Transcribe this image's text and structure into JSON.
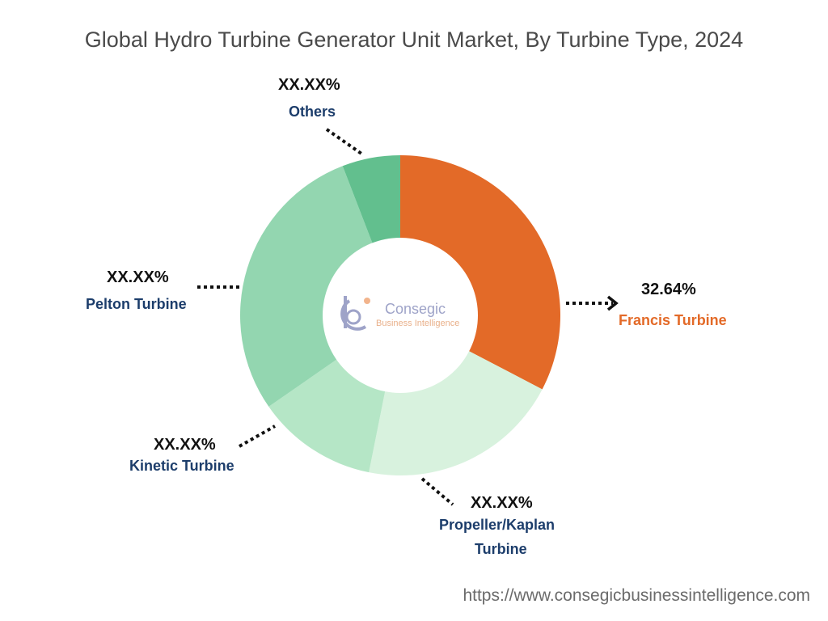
{
  "title": "Global Hydro Turbine Generator Unit Market, By Turbine Type, 2024",
  "source_url": "https://www.consegicbusinessintelligence.com",
  "logo": {
    "name": "Consegic",
    "tagline": "Business Intelligence"
  },
  "colors": {
    "francis": "#e36a28",
    "propeller": "#d8f2de",
    "kinetic": "#b5e6c6",
    "pelton": "#93d6b0",
    "others": "#62bf8e"
  },
  "chart_data": {
    "type": "pie",
    "donut": true,
    "title": "Global Hydro Turbine Generator Unit Market, By Turbine Type, 2024",
    "series": [
      {
        "name": "Francis Turbine",
        "value_label": "32.64%",
        "value": 32.64
      },
      {
        "name": "Propeller/Kaplan Turbine",
        "value_label": "XX.XX%",
        "value": 20.5
      },
      {
        "name": "Kinetic Turbine",
        "value_label": "XX.XX%",
        "value": 12.2
      },
      {
        "name": "Pelton Turbine",
        "value_label": "XX.XX%",
        "value": 28.8
      },
      {
        "name": "Others",
        "value_label": "XX.XX%",
        "value": 5.86
      }
    ]
  },
  "labels": {
    "francis": {
      "pct": "32.64%",
      "name": "Francis Turbine"
    },
    "propeller": {
      "pct": "XX.XX%",
      "name_line1": "Propeller/Kaplan",
      "name_line2": "Turbine"
    },
    "kinetic": {
      "pct": "XX.XX%",
      "name": "Kinetic Turbine"
    },
    "pelton": {
      "pct": "XX.XX%",
      "name": "Pelton Turbine"
    },
    "others": {
      "pct": "XX.XX%",
      "name": "Others"
    }
  }
}
